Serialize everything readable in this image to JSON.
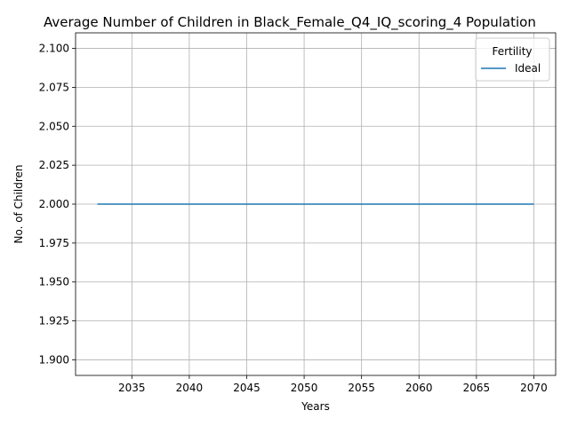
{
  "chart_data": {
    "type": "line",
    "title": "Average Number of Children in Black_Female_Q4_IQ_scoring_4 Population",
    "xlabel": "Years",
    "ylabel": "No. of Children",
    "xlim": [
      2030.1,
      2071.9
    ],
    "ylim": [
      1.89,
      2.11
    ],
    "xticks": [
      2035,
      2040,
      2045,
      2050,
      2055,
      2060,
      2065,
      2070
    ],
    "yticks": [
      1.9,
      1.925,
      1.95,
      1.975,
      2.0,
      2.025,
      2.05,
      2.075,
      2.1
    ],
    "ytick_labels": [
      "1.900",
      "1.925",
      "1.950",
      "1.975",
      "2.000",
      "2.025",
      "2.050",
      "2.075",
      "2.100"
    ],
    "grid": true,
    "legend": {
      "title": "Fertility",
      "placement": "top-right"
    },
    "series": [
      {
        "name": "Ideal",
        "color": "#1f77b4",
        "x": [
          2032,
          2070
        ],
        "y": [
          2.0,
          2.0
        ]
      }
    ]
  }
}
